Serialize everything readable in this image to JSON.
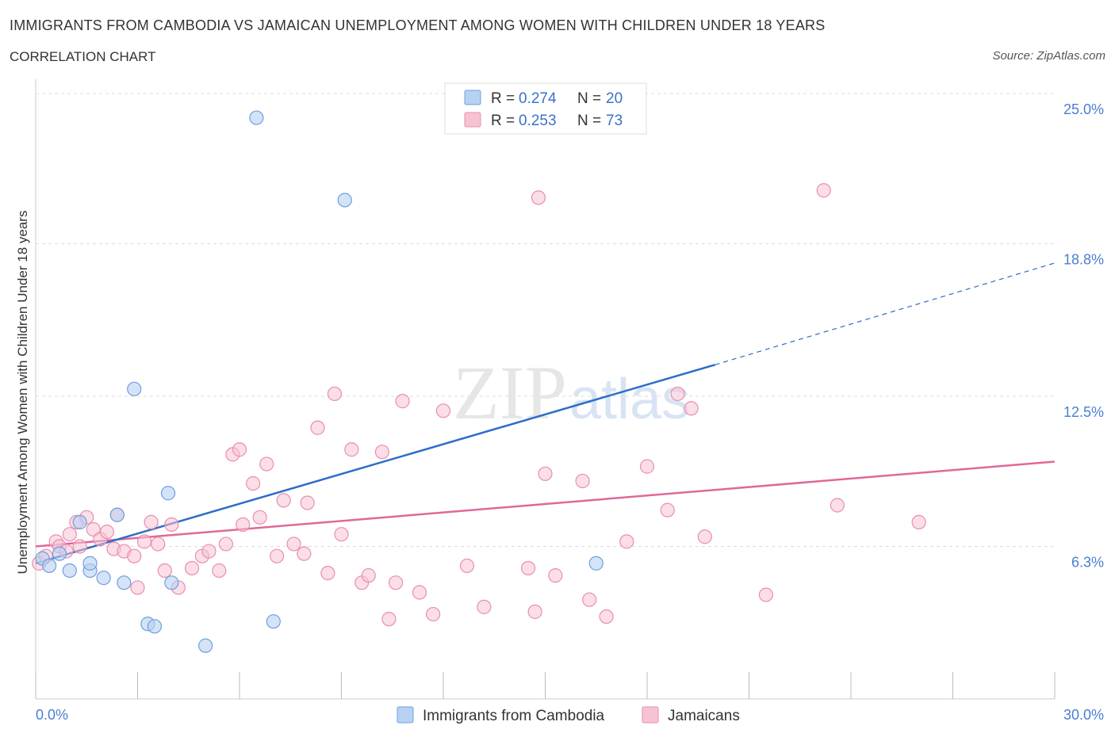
{
  "title": "IMMIGRANTS FROM CAMBODIA VS JAMAICAN UNEMPLOYMENT AMONG WOMEN WITH CHILDREN UNDER 18 YEARS",
  "subtitle": "CORRELATION CHART",
  "source": "Source: ZipAtlas.com",
  "watermark": "ZIPatlas",
  "colors": {
    "cambodia_fill": "#b8d1f3",
    "cambodia_stroke": "#6f9fdc",
    "cambodia_line": "#2d6cc9",
    "jamaica_fill": "#f7c3d3",
    "jamaica_stroke": "#e88fac",
    "jamaica_line": "#e0689a",
    "tick_label": "#4a7fd1"
  },
  "legend_top": {
    "rows": [
      {
        "r_label": "R = ",
        "r_value": "0.274",
        "n_label": "N = ",
        "n_value": "20"
      },
      {
        "r_label": "R = ",
        "r_value": "0.253",
        "n_label": "N = ",
        "n_value": "73"
      }
    ]
  },
  "legend_bottom": [
    "Immigrants from Cambodia",
    "Jamaicans"
  ],
  "chart_data": {
    "type": "scatter",
    "title": "IMMIGRANTS FROM CAMBODIA VS JAMAICAN UNEMPLOYMENT AMONG WOMEN WITH CHILDREN UNDER 18 YEARS",
    "xlabel": "",
    "ylabel": "Unemployment Among Women with Children Under 18 years",
    "xlim": [
      0,
      30
    ],
    "ylim": [
      0,
      25
    ],
    "x_tick_labels": [
      "0.0%",
      "30.0%"
    ],
    "y_tick_labels": [
      "6.3%",
      "12.5%",
      "18.8%",
      "25.0%"
    ],
    "y_ticks": [
      6.3,
      12.5,
      18.8,
      25.0
    ],
    "grid": true,
    "legend_position": "top-center",
    "series": [
      {
        "name": "Immigrants from Cambodia",
        "x": [
          0.2,
          0.4,
          0.7,
          1.0,
          1.3,
          1.6,
          1.6,
          2.0,
          2.4,
          2.6,
          2.9,
          3.3,
          3.5,
          3.9,
          4.0,
          5.0,
          6.5,
          7.0,
          9.1,
          16.5
        ],
        "y": [
          5.8,
          5.5,
          6.0,
          5.3,
          7.3,
          5.3,
          5.6,
          5.0,
          7.6,
          4.8,
          12.8,
          3.1,
          3.0,
          8.5,
          4.8,
          2.2,
          24.0,
          3.2,
          20.6,
          5.6
        ],
        "trend": {
          "x": [
            0,
            20
          ],
          "y": [
            5.6,
            13.8
          ]
        },
        "trend_dashed": {
          "x": [
            20,
            30
          ],
          "y": [
            13.8,
            18.0
          ]
        }
      },
      {
        "name": "Jamaicans",
        "x": [
          0.1,
          0.3,
          0.6,
          0.7,
          0.9,
          1.0,
          1.2,
          1.3,
          1.5,
          1.7,
          1.9,
          2.1,
          2.3,
          2.4,
          2.6,
          2.9,
          3.0,
          3.2,
          3.4,
          3.6,
          3.8,
          4.0,
          4.2,
          4.6,
          4.9,
          5.1,
          5.4,
          5.6,
          5.8,
          6.0,
          6.1,
          6.4,
          6.6,
          6.8,
          7.1,
          7.3,
          7.6,
          7.9,
          8.0,
          8.3,
          8.6,
          8.8,
          9.0,
          9.3,
          9.6,
          9.8,
          10.2,
          10.4,
          10.6,
          10.8,
          11.3,
          11.7,
          12.0,
          12.7,
          13.2,
          14.5,
          14.7,
          14.8,
          15.0,
          15.3,
          16.1,
          16.3,
          16.8,
          17.4,
          18.0,
          18.6,
          18.9,
          19.3,
          19.7,
          21.5,
          23.2,
          23.6,
          26.0
        ],
        "y": [
          5.6,
          5.9,
          6.5,
          6.3,
          6.1,
          6.8,
          7.3,
          6.3,
          7.5,
          7.0,
          6.6,
          6.9,
          6.2,
          7.6,
          6.1,
          5.9,
          4.6,
          6.5,
          7.3,
          6.4,
          5.3,
          7.2,
          4.6,
          5.4,
          5.9,
          6.1,
          5.3,
          6.4,
          10.1,
          10.3,
          7.2,
          8.9,
          7.5,
          9.7,
          5.9,
          8.2,
          6.4,
          6.0,
          8.1,
          11.2,
          5.2,
          12.6,
          6.8,
          10.3,
          4.8,
          5.1,
          10.2,
          3.3,
          4.8,
          12.3,
          4.4,
          3.5,
          11.9,
          5.5,
          3.8,
          5.4,
          3.6,
          20.7,
          9.3,
          5.1,
          9.0,
          4.1,
          3.4,
          6.5,
          9.6,
          7.8,
          12.6,
          12.0,
          6.7,
          4.3,
          21.0,
          8.0,
          7.3
        ],
        "trend": {
          "x": [
            0,
            30
          ],
          "y": [
            6.3,
            9.8
          ]
        }
      }
    ]
  }
}
